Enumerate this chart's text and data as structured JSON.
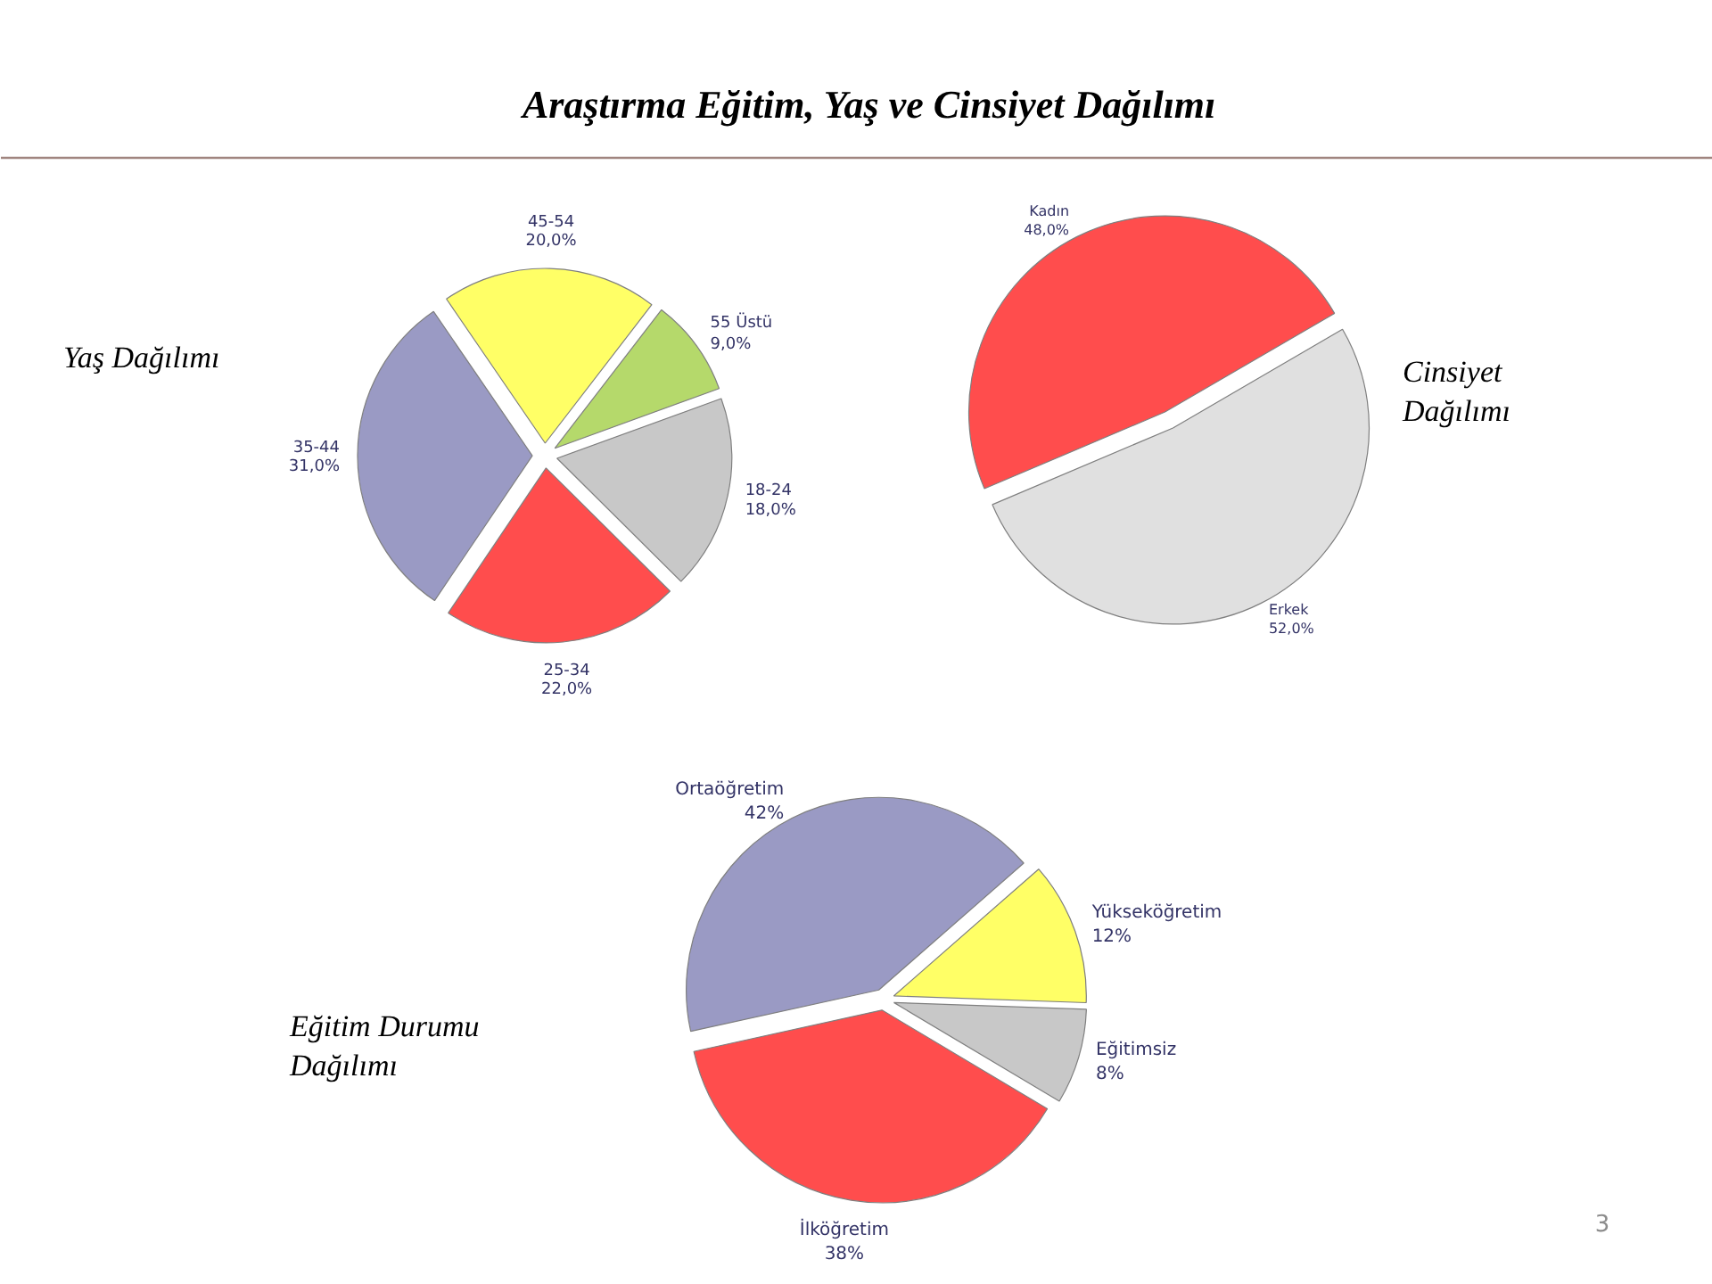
{
  "chart_data": [
    {
      "type": "other",
      "title": "Araştırma Eğitim, Yaş ve Cinsiyet Dağılımı"
    },
    {
      "type": "pie",
      "title": "Yaş Dağılımı",
      "categories": [
        "18-24",
        "25-34",
        "35-44",
        "45-54",
        "55 Üstü"
      ],
      "values": [
        18.0,
        22.0,
        31.0,
        20.0,
        9.0
      ],
      "value_labels": [
        "18,0%",
        "22,0%",
        "31,0%",
        "20,0%",
        "9,0%"
      ],
      "colors": [
        "#c8c8c8",
        "#ff4d4d",
        "#9a9ac4",
        "#ffff66",
        "#b5d96b"
      ]
    },
    {
      "type": "pie",
      "title": "Cinsiyet Dağılımı",
      "categories": [
        "Kadın",
        "Erkek"
      ],
      "values": [
        48.0,
        52.0
      ],
      "value_labels": [
        "48,0%",
        "52,0%"
      ],
      "colors": [
        "#ff4d4d",
        "#e0e0e0"
      ]
    },
    {
      "type": "pie",
      "title": "Eğitim Durumu Dağılımı",
      "categories": [
        "Eğitimsiz",
        "İlköğretim",
        "Ortaöğretim",
        "Yükseköğretim"
      ],
      "values": [
        8,
        38,
        42,
        12
      ],
      "value_labels": [
        "8%",
        "38%",
        "42%",
        "12%"
      ],
      "colors": [
        "#c8c8c8",
        "#ff4d4d",
        "#9a9ac4",
        "#ffff66"
      ],
      "annotations": [
        "3"
      ]
    }
  ]
}
